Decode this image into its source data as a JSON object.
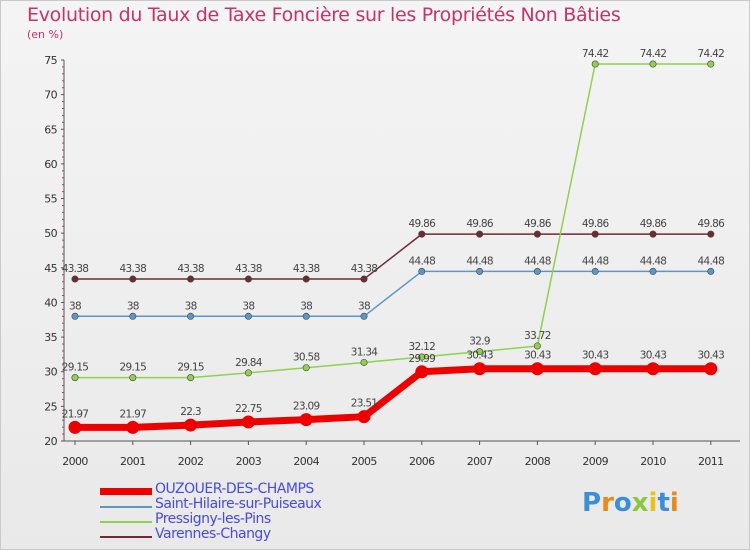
{
  "title": "Evolution du Taux de Taxe Foncière sur les Propriétés Non Bâties",
  "unit": "(en %)",
  "logo": "Proxiti",
  "chart_data": {
    "type": "line",
    "title": "Evolution du Taux de Taxe Foncière sur les Propriétés Non Bâties",
    "ylabel": "(en %)",
    "xlabel": "",
    "ylim": [
      20,
      75
    ],
    "yticks": [
      20,
      25,
      30,
      35,
      40,
      45,
      50,
      55,
      60,
      65,
      70,
      75
    ],
    "grid": false,
    "legend": "bottom-left",
    "x": [
      "2000",
      "2001",
      "2002",
      "2003",
      "2004",
      "2005",
      "2006",
      "2007",
      "2008",
      "2009",
      "2010",
      "2011"
    ],
    "series": [
      {
        "name": "Varennes-Changy",
        "color": "#6e2a35",
        "values": [
          43.38,
          43.38,
          43.38,
          43.38,
          43.38,
          43.38,
          49.86,
          49.86,
          49.86,
          49.86,
          49.86,
          49.86
        ],
        "labels": [
          "43.38",
          "43.38",
          "43.38",
          "43.38",
          "43.38",
          "43.38",
          "49.86",
          "49.86",
          "49.86",
          "49.86",
          "49.86",
          "49.86"
        ]
      },
      {
        "name": "Saint-Hilaire-sur-Puiseaux",
        "color": "#5b97c8",
        "values": [
          38,
          38,
          38,
          38,
          38,
          38,
          44.48,
          44.48,
          44.48,
          44.48,
          44.48,
          44.48
        ],
        "labels": [
          "38",
          "38",
          "38",
          "38",
          "38",
          "38",
          "44.48",
          "44.48",
          "44.48",
          "44.48",
          "44.48",
          "44.48"
        ]
      },
      {
        "name": "Pressigny-les-Pins",
        "color": "#8fd14f",
        "values": [
          29.15,
          29.15,
          29.15,
          29.84,
          30.58,
          31.34,
          32.12,
          32.9,
          33.72,
          74.42,
          74.42,
          74.42
        ],
        "labels": [
          "29.15",
          "29.15",
          "29.15",
          "29.84",
          "30.58",
          "31.34",
          "32.12",
          "32.9",
          "33.72",
          "74.42",
          "74.42",
          "74.42"
        ]
      },
      {
        "name": "OUZOUER-DES-CHAMPS",
        "color": "#ee0000",
        "values": [
          21.97,
          21.97,
          22.3,
          22.75,
          23.09,
          23.51,
          29.99,
          30.43,
          30.43,
          30.43,
          30.43,
          30.43
        ],
        "labels": [
          "21.97",
          "21.97",
          "22.3",
          "22.75",
          "23.09",
          "23.51",
          "29.99",
          "30.43",
          "30.43",
          "30.43",
          "30.43",
          "30.43"
        ]
      }
    ],
    "legend_entries": [
      "OUZOUER-DES-CHAMPS",
      "Saint-Hilaire-sur-Puiseaux",
      "Pressigny-les-Pins",
      "Varennes-Changy"
    ]
  }
}
